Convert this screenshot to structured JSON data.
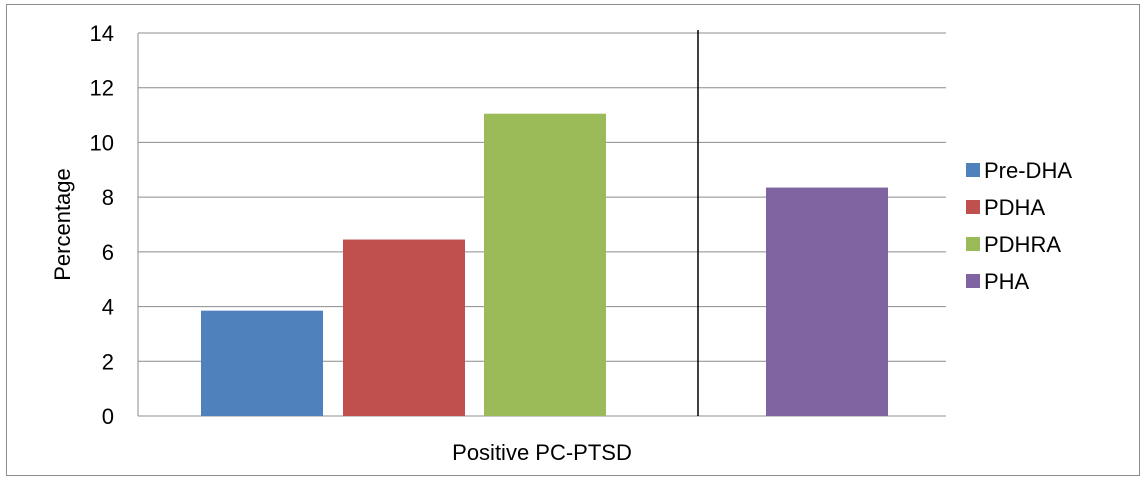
{
  "chart_data": {
    "type": "bar",
    "title": "",
    "xlabel": "Positive PC-PTSD",
    "ylabel": "Percentage",
    "ylim": [
      0,
      14
    ],
    "yticks": [
      0,
      2,
      4,
      6,
      8,
      10,
      12,
      14
    ],
    "grid": true,
    "legend_position": "right",
    "series": [
      {
        "name": "Pre-DHA",
        "value": 3.85,
        "color": "#4f81bd"
      },
      {
        "name": "PDHA",
        "value": 6.45,
        "color": "#c0504d"
      },
      {
        "name": "PDHRA",
        "value": 11.05,
        "color": "#9bbb59"
      },
      {
        "name": "PHA",
        "value": 8.35,
        "color": "#8064a2"
      }
    ],
    "separator_line": "between PDHRA and PHA"
  }
}
